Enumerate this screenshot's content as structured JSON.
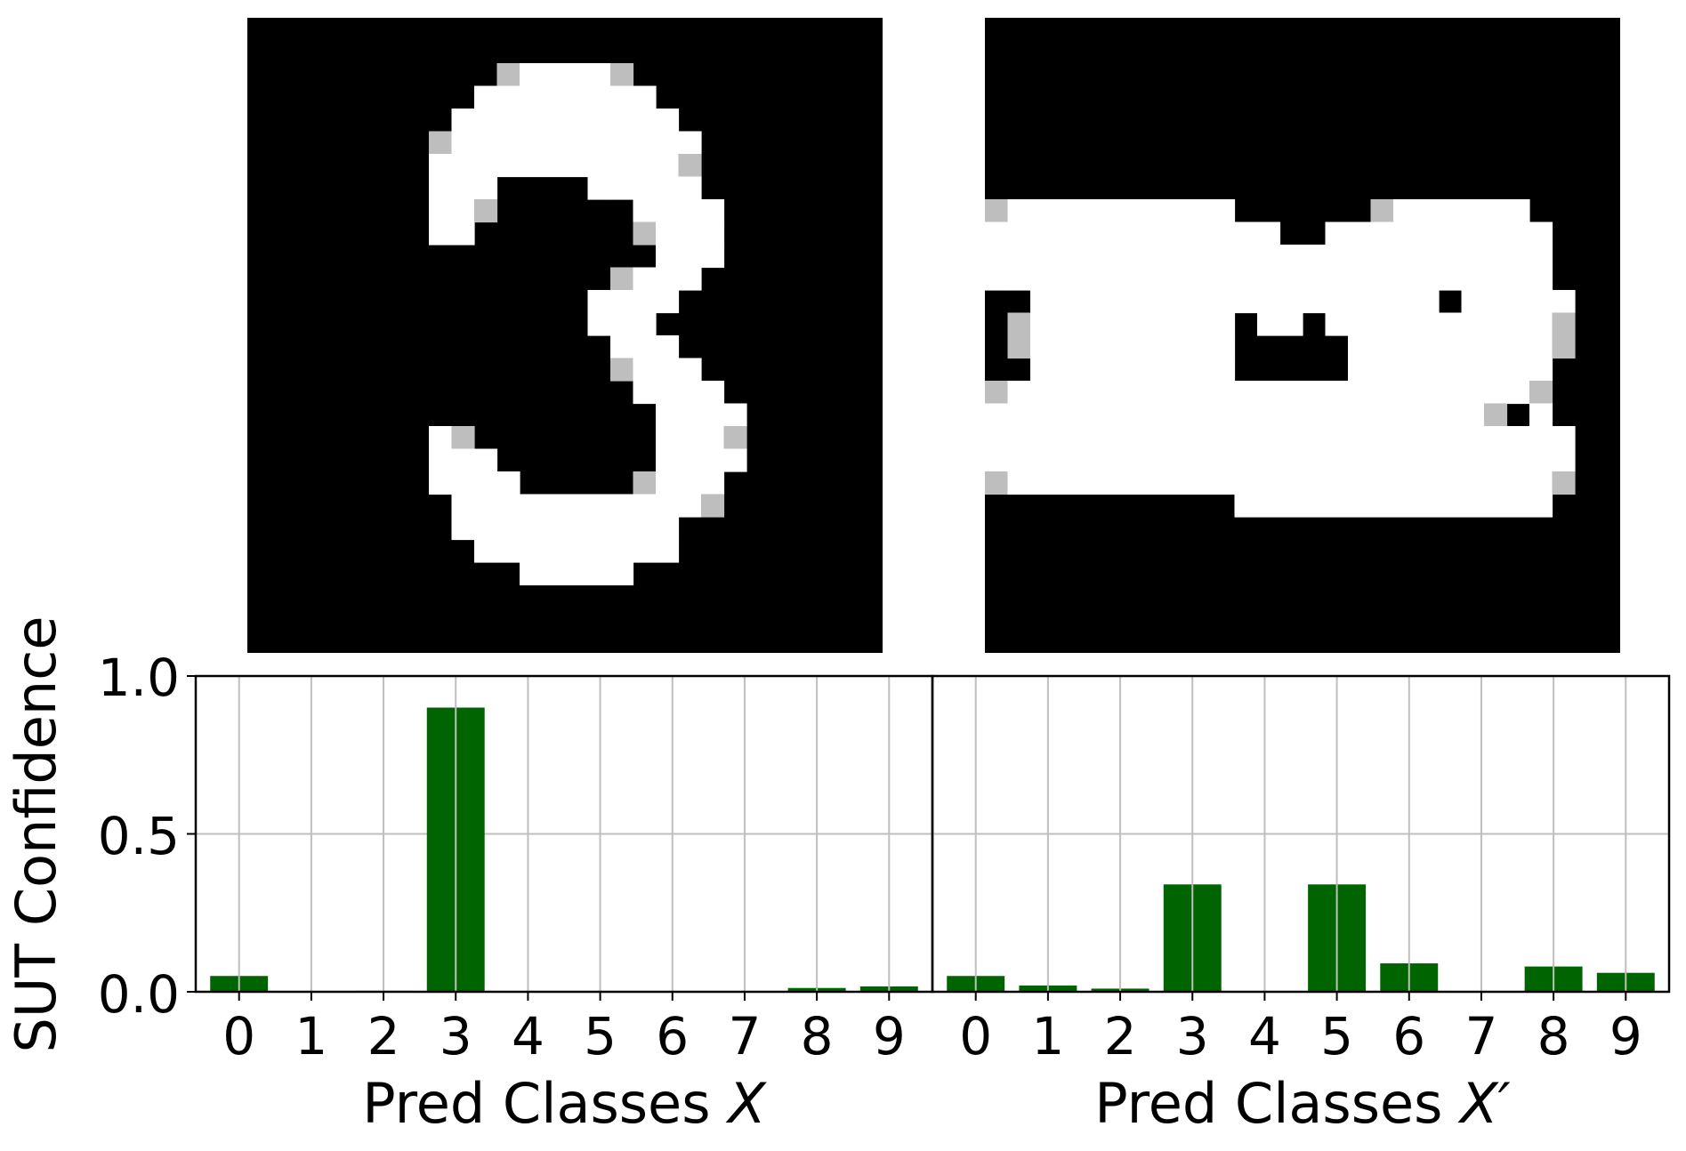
{
  "figure": {
    "ylabel": "SUT Confidence",
    "colors": {
      "bar": "#006400",
      "grid": "#bfbfbf",
      "axis": "#000000",
      "image_bg": "#000000"
    }
  },
  "images": [
    {
      "name": "original-digit-image",
      "depicts": "MNIST digit 3 (white on black)"
    },
    {
      "name": "mutated-digit-image",
      "depicts": "mutated digit blob (white on black)"
    }
  ],
  "chart_data": [
    {
      "type": "bar",
      "title": "",
      "xlabel": "Pred Classes X",
      "xlabel_prefix": "Pred Classes ",
      "xlabel_symbol": "X",
      "ylabel": "SUT Confidence",
      "categories": [
        "0",
        "1",
        "2",
        "3",
        "4",
        "5",
        "6",
        "7",
        "8",
        "9"
      ],
      "values": [
        0.05,
        0.0,
        0.003,
        0.9,
        0.0,
        0.0,
        0.0,
        0.002,
        0.012,
        0.017
      ],
      "ylim": [
        0,
        1.0
      ],
      "yticks": [
        "0.0",
        "0.5",
        "1.0"
      ],
      "grid": true
    },
    {
      "type": "bar",
      "title": "",
      "xlabel": "Pred Classes X′",
      "xlabel_prefix": "Pred Classes ",
      "xlabel_symbol": "X′",
      "ylabel": "",
      "categories": [
        "0",
        "1",
        "2",
        "3",
        "4",
        "5",
        "6",
        "7",
        "8",
        "9"
      ],
      "values": [
        0.05,
        0.02,
        0.01,
        0.34,
        0.002,
        0.34,
        0.09,
        0.0,
        0.08,
        0.06
      ],
      "ylim": [
        0,
        1.0
      ],
      "grid": true
    }
  ]
}
